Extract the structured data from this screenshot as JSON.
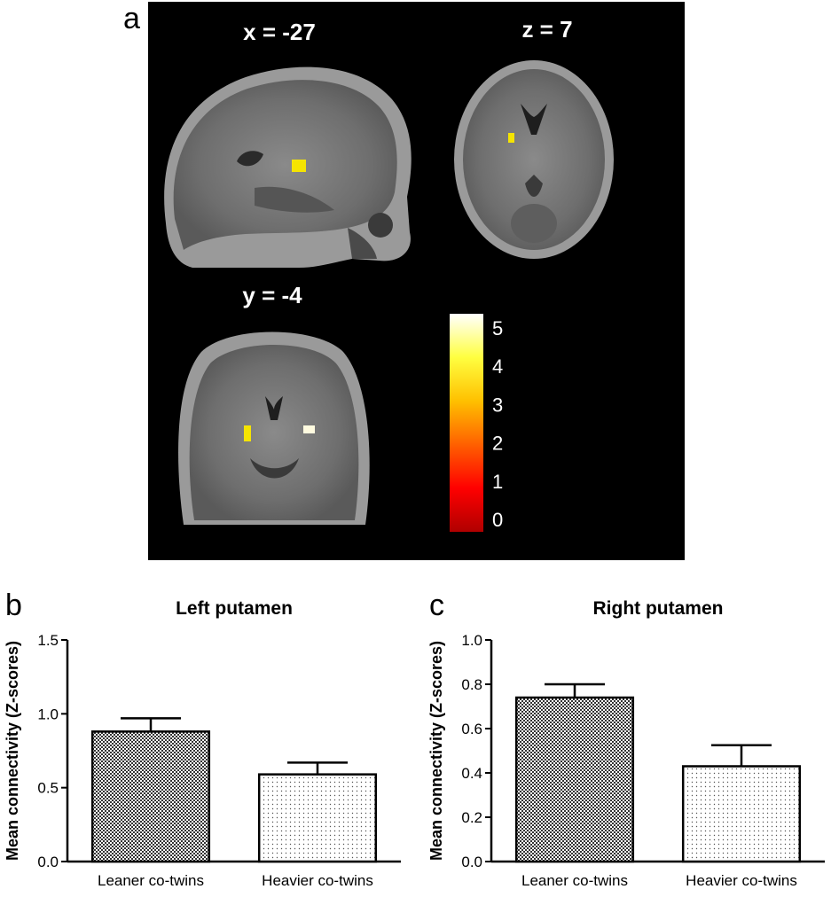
{
  "panel_labels": {
    "a": "a",
    "b": "b",
    "c": "c"
  },
  "brain_panel": {
    "sagittal_label": "x = -27",
    "axial_label": "z = 7",
    "coronal_label": "y = -4",
    "colorbar": {
      "ticks": [
        "5",
        "4",
        "3",
        "2",
        "1",
        "0"
      ],
      "colors": [
        "#ffffff",
        "#ffff40",
        "#ffc000",
        "#ff6000",
        "#ff0000",
        "#b00000"
      ]
    },
    "highlight_color": "#f5e400"
  },
  "chart_data": [
    {
      "type": "bar",
      "title": "Left putamen",
      "ylabel": "Mean connectivity (Z-scores)",
      "xlabel": "",
      "categories": [
        "Leaner co-twins",
        "Heavier co-twins"
      ],
      "values": [
        0.88,
        0.59
      ],
      "errors": [
        0.09,
        0.08
      ],
      "patterns": [
        "dense",
        "sparse"
      ],
      "ylim": [
        0,
        1.5
      ],
      "yticks": [
        "0.0",
        "0.5",
        "1.0",
        "1.5"
      ],
      "grid": false
    },
    {
      "type": "bar",
      "title": "Right putamen",
      "ylabel": "Mean connectivity (Z-scores)",
      "xlabel": "",
      "categories": [
        "Leaner co-twins",
        "Heavier co-twins"
      ],
      "values": [
        0.74,
        0.43
      ],
      "errors": [
        0.06,
        0.095
      ],
      "patterns": [
        "dense",
        "sparse"
      ],
      "ylim": [
        0,
        1.0
      ],
      "yticks": [
        "0.0",
        "0.2",
        "0.4",
        "0.6",
        "0.8",
        "1.0"
      ],
      "grid": false
    }
  ]
}
